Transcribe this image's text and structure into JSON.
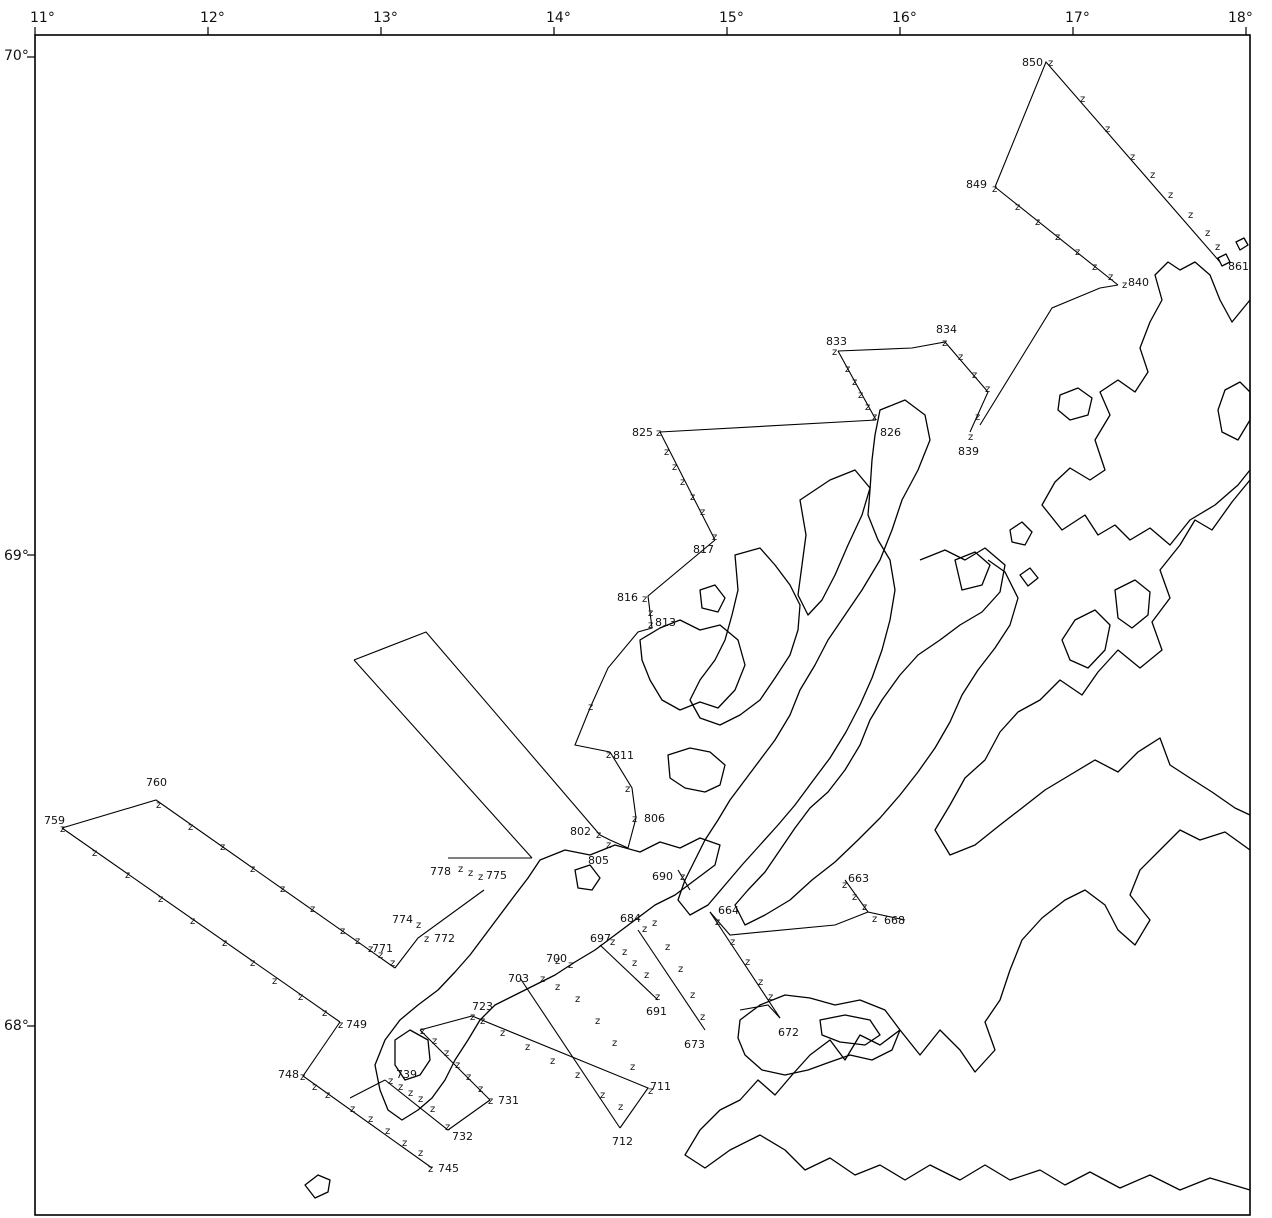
{
  "map": {
    "lon_labels": [
      "11°",
      "12°",
      "13°",
      "14°",
      "15°",
      "16°",
      "17°",
      "18°"
    ],
    "lat_labels": [
      "70°",
      "69°",
      "68°"
    ],
    "station_marker": "z",
    "stations": [
      "850",
      "849",
      "861",
      "840",
      "833",
      "834",
      "839",
      "826",
      "825",
      "817",
      "816",
      "813",
      "811",
      "806",
      "802",
      "805",
      "778",
      "775",
      "774",
      "772",
      "771",
      "760",
      "759",
      "749",
      "748",
      "739",
      "745",
      "732",
      "731",
      "723",
      "712",
      "711",
      "703",
      "700",
      "697",
      "684",
      "690",
      "691",
      "673",
      "672",
      "664",
      "663",
      "668"
    ]
  }
}
